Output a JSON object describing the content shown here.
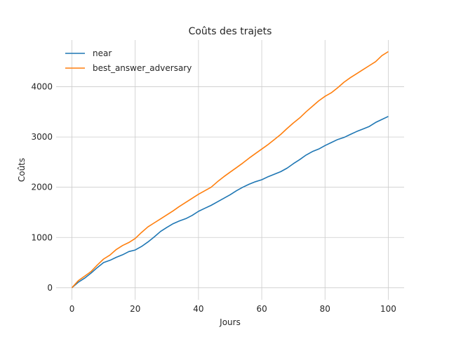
{
  "chart_data": {
    "type": "line",
    "title": "Coûts des trajets",
    "xlabel": "Jours",
    "ylabel": "Coûts",
    "xlim": [
      -5,
      105
    ],
    "ylim": [
      -240,
      4930
    ],
    "xticks": [
      0,
      20,
      40,
      60,
      80,
      100
    ],
    "yticks": [
      0,
      1000,
      2000,
      3000,
      4000
    ],
    "grid": true,
    "legend_position": "top-left",
    "series": [
      {
        "name": "near",
        "color": "#1f77b4",
        "x": [
          0,
          2,
          4,
          6,
          8,
          10,
          12,
          14,
          16,
          18,
          20,
          22,
          24,
          26,
          28,
          30,
          32,
          34,
          36,
          38,
          40,
          42,
          44,
          46,
          48,
          50,
          52,
          54,
          56,
          58,
          60,
          62,
          64,
          66,
          68,
          70,
          72,
          74,
          76,
          78,
          80,
          82,
          84,
          86,
          88,
          90,
          92,
          94,
          96,
          98,
          100
        ],
        "values": [
          0,
          110,
          190,
          290,
          400,
          500,
          545,
          605,
          655,
          720,
          750,
          820,
          910,
          1010,
          1120,
          1200,
          1275,
          1330,
          1375,
          1440,
          1520,
          1580,
          1640,
          1710,
          1780,
          1850,
          1930,
          2000,
          2060,
          2110,
          2150,
          2210,
          2260,
          2310,
          2380,
          2470,
          2550,
          2640,
          2710,
          2760,
          2830,
          2890,
          2950,
          2990,
          3050,
          3110,
          3160,
          3210,
          3290,
          3350,
          3410
        ]
      },
      {
        "name": "best_answer_adversary",
        "color": "#ff7f0e",
        "x": [
          0,
          2,
          4,
          6,
          8,
          10,
          12,
          14,
          16,
          18,
          20,
          22,
          24,
          26,
          28,
          30,
          32,
          34,
          36,
          38,
          40,
          42,
          44,
          46,
          48,
          50,
          52,
          54,
          56,
          58,
          60,
          62,
          64,
          66,
          68,
          70,
          72,
          74,
          76,
          78,
          80,
          82,
          84,
          86,
          88,
          90,
          92,
          94,
          96,
          98,
          100
        ],
        "values": [
          0,
          140,
          230,
          320,
          450,
          570,
          650,
          760,
          840,
          900,
          980,
          1100,
          1210,
          1290,
          1370,
          1450,
          1530,
          1620,
          1700,
          1780,
          1860,
          1930,
          2000,
          2110,
          2210,
          2300,
          2390,
          2480,
          2580,
          2670,
          2760,
          2850,
          2950,
          3050,
          3170,
          3280,
          3380,
          3500,
          3610,
          3720,
          3810,
          3880,
          3980,
          4090,
          4180,
          4260,
          4340,
          4420,
          4500,
          4620,
          4700
        ]
      }
    ]
  }
}
